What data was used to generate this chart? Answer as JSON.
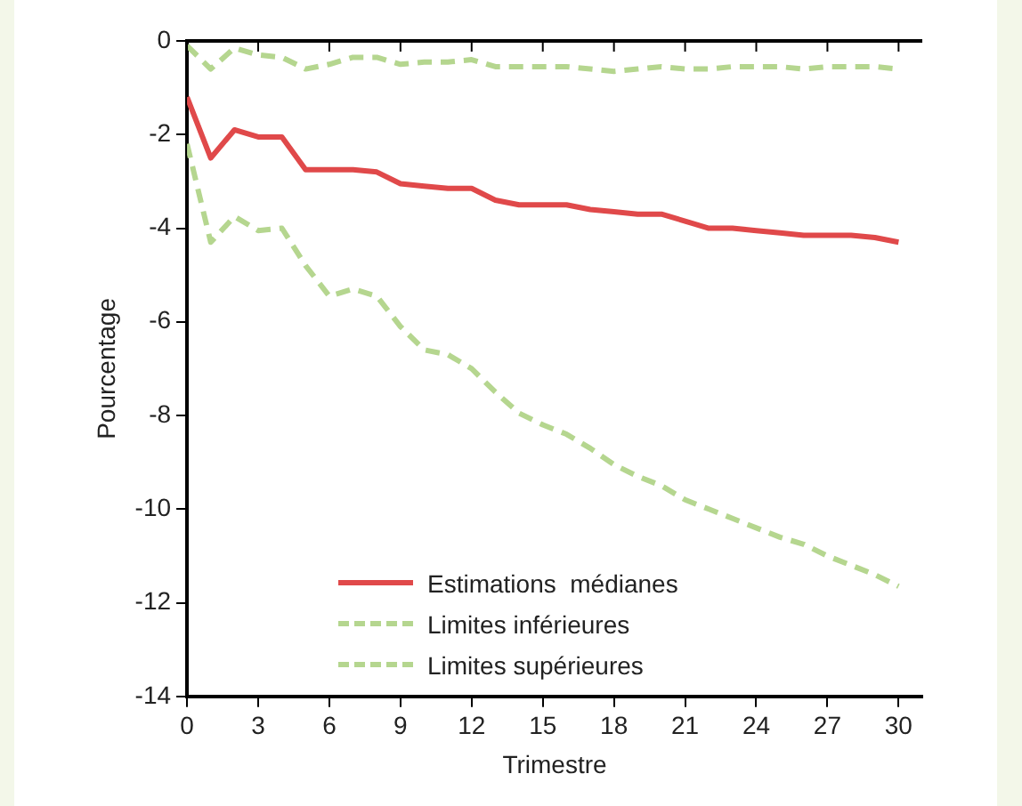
{
  "chart_data": {
    "type": "line",
    "xlabel": "Trimestre",
    "ylabel": "Pourcentage",
    "x": [
      0,
      1,
      2,
      3,
      4,
      5,
      6,
      7,
      8,
      9,
      10,
      11,
      12,
      13,
      14,
      15,
      16,
      17,
      18,
      19,
      20,
      21,
      22,
      23,
      24,
      25,
      26,
      27,
      28,
      29,
      30
    ],
    "series": [
      {
        "name": "Estimations  médianes",
        "color": "#e0494a",
        "line_style": "solid",
        "values": [
          -1.2,
          -2.5,
          -1.9,
          -2.05,
          -2.05,
          -2.75,
          -2.75,
          -2.75,
          -2.8,
          -3.05,
          -3.1,
          -3.15,
          -3.15,
          -3.4,
          -3.5,
          -3.5,
          -3.5,
          -3.6,
          -3.65,
          -3.7,
          -3.7,
          -3.85,
          -4.0,
          -4.0,
          -4.05,
          -4.1,
          -4.15,
          -4.15,
          -4.15,
          -4.2,
          -4.3
        ]
      },
      {
        "name": "Limites inférieures",
        "color": "#b5d68f",
        "line_style": "dashed",
        "values": [
          -2.2,
          -4.3,
          -3.75,
          -4.05,
          -4.0,
          -4.8,
          -5.45,
          -5.3,
          -5.45,
          -6.1,
          -6.6,
          -6.7,
          -7.0,
          -7.5,
          -7.95,
          -8.2,
          -8.4,
          -8.7,
          -9.05,
          -9.3,
          -9.5,
          -9.8,
          -10.0,
          -10.2,
          -10.4,
          -10.6,
          -10.75,
          -11.0,
          -11.2,
          -11.4,
          -11.65
        ]
      },
      {
        "name": "Limites supérieures",
        "color": "#b5d68f",
        "line_style": "dashed",
        "values": [
          -0.1,
          -0.6,
          -0.15,
          -0.3,
          -0.35,
          -0.6,
          -0.5,
          -0.35,
          -0.35,
          -0.5,
          -0.45,
          -0.45,
          -0.4,
          -0.55,
          -0.55,
          -0.55,
          -0.55,
          -0.6,
          -0.65,
          -0.6,
          -0.55,
          -0.6,
          -0.6,
          -0.55,
          -0.55,
          -0.55,
          -0.6,
          -0.55,
          -0.55,
          -0.55,
          -0.6
        ]
      }
    ],
    "xlim": [
      0,
      31
    ],
    "xticks": [
      0,
      3,
      6,
      9,
      12,
      15,
      18,
      21,
      24,
      27,
      30
    ],
    "ylim": [
      -14,
      0
    ],
    "yticks": [
      0,
      -2,
      -4,
      -6,
      -8,
      -10,
      -12,
      -14
    ],
    "grid": false,
    "legend": "bottom",
    "marker": "none"
  }
}
